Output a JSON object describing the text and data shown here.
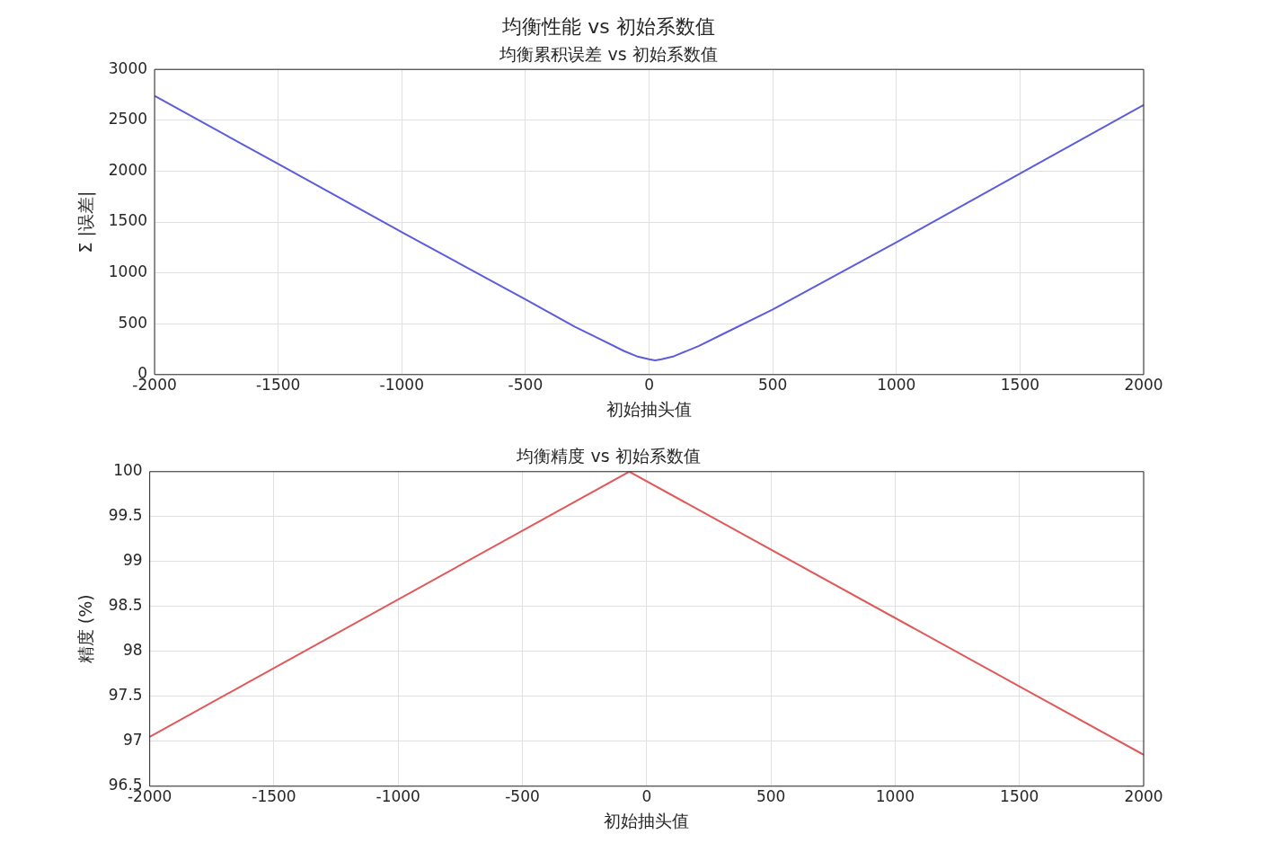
{
  "chart_data": [
    {
      "type": "line",
      "title": "均衡性能 vs 初始系数值",
      "subtitle": "均衡累积误差 vs 初始系数值",
      "xlabel": "初始抽头值",
      "ylabel": "Σ |误差|",
      "xlim": [
        -2000,
        2000
      ],
      "xticks": [
        -2000,
        -1500,
        -1000,
        -500,
        0,
        500,
        1000,
        1500,
        2000
      ],
      "ylim": [
        0,
        3000
      ],
      "yticks": [
        0,
        500,
        1000,
        1500,
        2000,
        2500,
        3000
      ],
      "grid": true,
      "legend": false,
      "marker": "none",
      "series": [
        {
          "color": "#5c5cdc",
          "x": [
            -2000,
            -1500,
            -1000,
            -500,
            -300,
            -200,
            -100,
            -50,
            0,
            25,
            50,
            100,
            200,
            300,
            500,
            1000,
            1500,
            2000
          ],
          "values": [
            2740,
            2070,
            1400,
            740,
            470,
            350,
            230,
            180,
            150,
            140,
            150,
            180,
            280,
            400,
            640,
            1300,
            1975,
            2650
          ]
        }
      ]
    },
    {
      "type": "line",
      "title": "均衡精度 vs 初始系数值",
      "xlabel": "初始抽头值",
      "ylabel": "精度 (%)",
      "xlim": [
        -2000,
        2000
      ],
      "xticks": [
        -2000,
        -1500,
        -1000,
        -500,
        0,
        500,
        1000,
        1500,
        2000
      ],
      "ylim": [
        96.5,
        100
      ],
      "yticks": [
        96.5,
        97,
        97.5,
        98,
        98.5,
        99,
        99.5,
        100
      ],
      "grid": true,
      "legend": false,
      "marker": "none",
      "series": [
        {
          "color": "#e05a5a",
          "x": [
            -2000,
            -70,
            2000
          ],
          "values": [
            97.05,
            100,
            96.85
          ]
        }
      ]
    }
  ]
}
